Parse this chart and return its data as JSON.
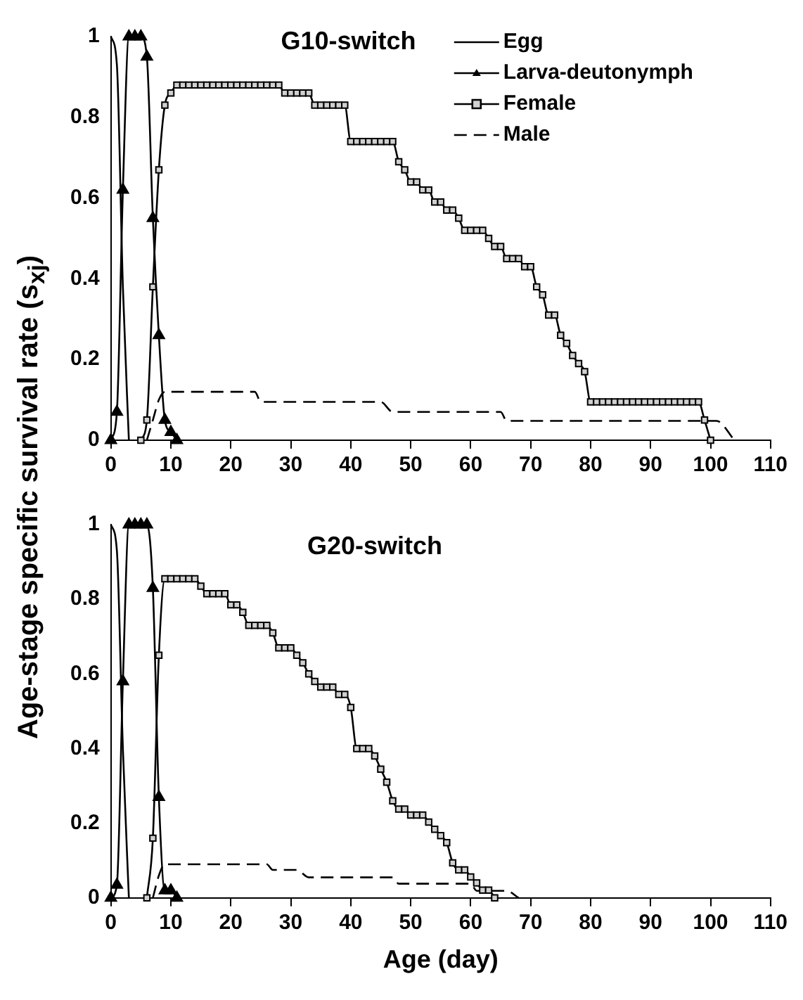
{
  "chart_data": [
    {
      "type": "line",
      "title": "G10-switch",
      "ylabel": "Age-stage specific survival rate (s$_{xj}$)",
      "xlim": [
        0,
        110
      ],
      "xticks": [
        0,
        10,
        20,
        30,
        40,
        50,
        60,
        70,
        80,
        90,
        100,
        110
      ],
      "ylim": [
        0,
        1
      ],
      "yticks": [
        0,
        0.2,
        0.4,
        0.6,
        0.8,
        1
      ],
      "grid": false,
      "legend": "top right",
      "series": [
        {
          "name": "Egg",
          "color": "#000000",
          "marker": "none",
          "line_style": "solid",
          "x": [
            0,
            1,
            2,
            3
          ],
          "values": [
            1,
            0.93,
            0.38,
            0
          ]
        },
        {
          "name": "Larva-deutonymph",
          "color": "#000000",
          "marker": "triangle",
          "line_style": "solid",
          "x": [
            0,
            1,
            2,
            3,
            4,
            5,
            6,
            7,
            8,
            9,
            10,
            11
          ],
          "values": [
            0,
            0.07,
            0.62,
            1,
            1,
            1,
            0.95,
            0.55,
            0.26,
            0.05,
            0.02,
            0
          ]
        },
        {
          "name": "Female",
          "color": "#000000",
          "marker": "square",
          "line_style": "solid",
          "x": [
            5,
            6,
            7,
            8,
            9,
            10,
            11,
            12,
            13,
            14,
            15,
            16,
            17,
            18,
            19,
            20,
            21,
            22,
            23,
            24,
            25,
            26,
            27,
            28,
            29,
            30,
            31,
            32,
            33,
            34,
            35,
            36,
            37,
            38,
            39,
            40,
            41,
            42,
            43,
            44,
            45,
            46,
            47,
            48,
            49,
            50,
            51,
            52,
            53,
            54,
            55,
            56,
            57,
            58,
            59,
            60,
            61,
            62,
            63,
            64,
            65,
            66,
            67,
            68,
            69,
            70,
            71,
            72,
            73,
            74,
            75,
            76,
            77,
            78,
            79,
            80,
            81,
            82,
            83,
            84,
            85,
            86,
            87,
            88,
            89,
            90,
            91,
            92,
            93,
            94,
            95,
            96,
            97,
            98,
            99,
            100
          ],
          "values": [
            0,
            0.05,
            0.38,
            0.67,
            0.83,
            0.86,
            0.88,
            0.88,
            0.88,
            0.88,
            0.88,
            0.88,
            0.88,
            0.88,
            0.88,
            0.88,
            0.88,
            0.88,
            0.88,
            0.88,
            0.88,
            0.88,
            0.88,
            0.88,
            0.86,
            0.86,
            0.86,
            0.86,
            0.86,
            0.83,
            0.83,
            0.83,
            0.83,
            0.83,
            0.83,
            0.74,
            0.74,
            0.74,
            0.74,
            0.74,
            0.74,
            0.74,
            0.74,
            0.69,
            0.67,
            0.64,
            0.64,
            0.62,
            0.62,
            0.59,
            0.59,
            0.57,
            0.57,
            0.55,
            0.52,
            0.52,
            0.52,
            0.52,
            0.5,
            0.48,
            0.48,
            0.45,
            0.45,
            0.45,
            0.43,
            0.43,
            0.38,
            0.36,
            0.31,
            0.31,
            0.26,
            0.24,
            0.21,
            0.19,
            0.17,
            0.095,
            0.095,
            0.095,
            0.095,
            0.095,
            0.095,
            0.095,
            0.095,
            0.095,
            0.095,
            0.095,
            0.095,
            0.095,
            0.095,
            0.095,
            0.095,
            0.095,
            0.095,
            0.095,
            0.05,
            0
          ]
        },
        {
          "name": "Male",
          "color": "#000000",
          "marker": "none",
          "line_style": "dashed",
          "x": [
            6,
            7,
            8,
            9,
            24,
            25,
            45,
            47,
            65,
            66,
            101,
            104
          ],
          "values": [
            0,
            0.05,
            0.1,
            0.12,
            0.12,
            0.095,
            0.095,
            0.07,
            0.07,
            0.048,
            0.048,
            0
          ]
        }
      ]
    },
    {
      "type": "line",
      "title": "G20-switch",
      "xlabel": "Age (day)",
      "xlim": [
        0,
        110
      ],
      "xticks": [
        0,
        10,
        20,
        30,
        40,
        50,
        60,
        70,
        80,
        90,
        100,
        110
      ],
      "ylim": [
        0,
        1
      ],
      "yticks": [
        0,
        0.2,
        0.4,
        0.6,
        0.8,
        1
      ],
      "grid": false,
      "series": [
        {
          "color": "#000000",
          "marker": "none",
          "line_style": "solid",
          "x": [
            0,
            1,
            2,
            3
          ],
          "values": [
            1,
            0.93,
            0.4,
            0
          ]
        },
        {
          "color": "#000000",
          "marker": "triangle",
          "line_style": "solid",
          "x": [
            0,
            1,
            2,
            3,
            4,
            5,
            6,
            7,
            8,
            9,
            10,
            11
          ],
          "values": [
            0,
            0.035,
            0.58,
            1,
            1,
            1,
            1,
            0.83,
            0.27,
            0.02,
            0.02,
            0
          ]
        },
        {
          "color": "#000000",
          "marker": "square",
          "line_style": "solid",
          "x": [
            6,
            7,
            8,
            9,
            10,
            11,
            12,
            13,
            14,
            15,
            16,
            17,
            18,
            19,
            20,
            21,
            22,
            23,
            24,
            25,
            26,
            27,
            28,
            29,
            30,
            31,
            32,
            33,
            34,
            35,
            36,
            37,
            38,
            39,
            40,
            41,
            42,
            43,
            44,
            45,
            46,
            47,
            48,
            49,
            50,
            51,
            52,
            53,
            54,
            55,
            56,
            57,
            58,
            59,
            60,
            61,
            62,
            63,
            64
          ],
          "values": [
            0,
            0.16,
            0.65,
            0.855,
            0.855,
            0.855,
            0.855,
            0.855,
            0.855,
            0.835,
            0.815,
            0.815,
            0.815,
            0.815,
            0.785,
            0.785,
            0.765,
            0.73,
            0.73,
            0.73,
            0.73,
            0.71,
            0.67,
            0.67,
            0.67,
            0.65,
            0.63,
            0.6,
            0.58,
            0.565,
            0.565,
            0.565,
            0.545,
            0.545,
            0.51,
            0.4,
            0.4,
            0.4,
            0.38,
            0.345,
            0.31,
            0.26,
            0.238,
            0.238,
            0.222,
            0.222,
            0.222,
            0.203,
            0.184,
            0.167,
            0.148,
            0.094,
            0.075,
            0.075,
            0.056,
            0.04,
            0.021,
            0.021,
            0
          ]
        },
        {
          "color": "#000000",
          "marker": "none",
          "line_style": "dashed",
          "x": [
            7,
            8,
            9,
            26,
            27,
            31,
            33,
            47,
            48,
            60,
            61,
            66,
            68
          ],
          "values": [
            0,
            0.06,
            0.09,
            0.09,
            0.075,
            0.075,
            0.055,
            0.055,
            0.038,
            0.038,
            0.019,
            0.019,
            0
          ]
        }
      ]
    }
  ]
}
